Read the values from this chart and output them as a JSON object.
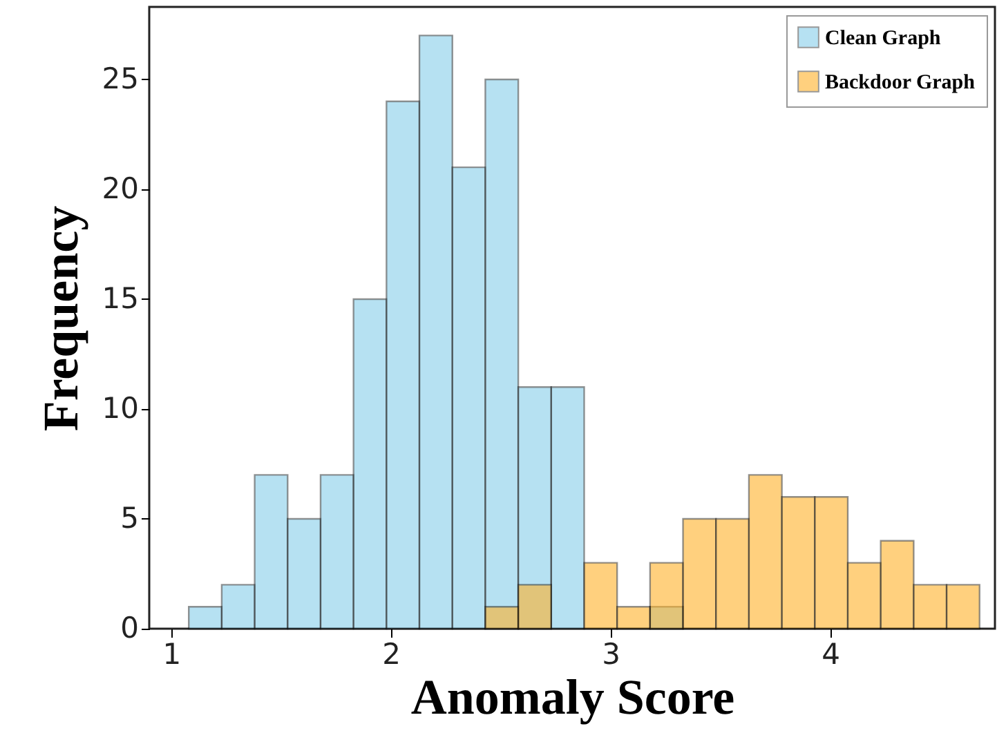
{
  "chart_data": {
    "type": "histogram",
    "xlabel": "Anomaly Score",
    "ylabel": "Frequency",
    "xlim": [
      0.9,
      4.75
    ],
    "ylim": [
      0,
      28.3
    ],
    "xticks": [
      1,
      2,
      3,
      4
    ],
    "yticks": [
      0,
      5,
      10,
      15,
      20,
      25
    ],
    "grid": false,
    "legend": "top right",
    "bins": [
      1.08,
      1.23,
      1.38,
      1.53,
      1.68,
      1.83,
      1.98,
      2.13,
      2.28,
      2.43,
      2.58,
      2.73,
      2.88,
      3.03,
      3.18,
      3.33,
      3.48,
      3.63,
      3.78,
      3.93,
      4.08,
      4.23,
      4.38,
      4.53,
      4.68
    ],
    "series": [
      {
        "name": "Clean Graph",
        "color": "#87ceeb",
        "values": [
          1,
          2,
          7,
          5,
          7,
          15,
          24,
          27,
          21,
          25,
          11,
          11,
          null,
          null,
          1,
          null,
          null,
          null,
          null,
          null,
          null,
          null,
          null,
          null
        ]
      },
      {
        "name": "Backdoor Graph",
        "color": "#ffb22a",
        "values": [
          null,
          null,
          null,
          null,
          null,
          null,
          null,
          null,
          null,
          1,
          2,
          0,
          3,
          1,
          3,
          5,
          5,
          7,
          6,
          6,
          3,
          4,
          2,
          2
        ]
      }
    ]
  }
}
